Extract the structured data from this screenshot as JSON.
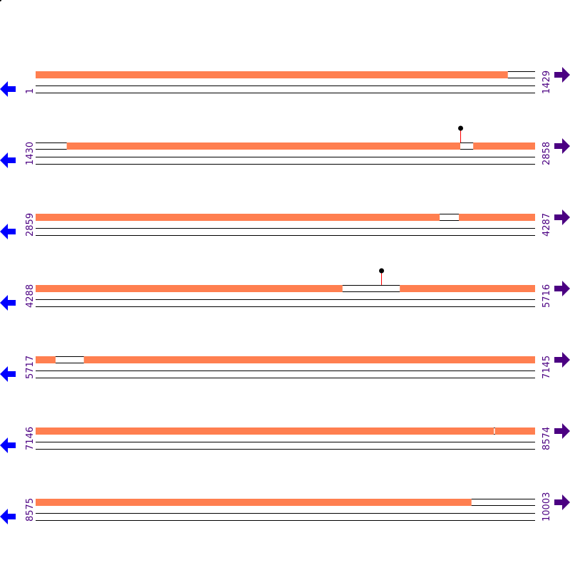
{
  "colors": {
    "covered": "#ff7f50",
    "gap_fill": "#ffffff",
    "line": "#000000",
    "marker_stem": "#ff0000",
    "marker_head": "#000000",
    "label": "#4b0082",
    "left_arrow": "#0000ff",
    "right_arrow": "#4b0082"
  },
  "icons": {
    "left": "arrow-left-icon",
    "right": "arrow-right-icon"
  },
  "rows": [
    {
      "start_label": "1",
      "end_label": "1429",
      "start": 1,
      "end": 1429
    },
    {
      "start_label": "1430",
      "end_label": "2858",
      "start": 1430,
      "end": 2858
    },
    {
      "start_label": "2859",
      "end_label": "4287",
      "start": 2859,
      "end": 4287
    },
    {
      "start_label": "4288",
      "end_label": "5716",
      "start": 4288,
      "end": 5716
    },
    {
      "start_label": "5717",
      "end_label": "7145",
      "start": 5717,
      "end": 7145
    },
    {
      "start_label": "7146",
      "end_label": "8574",
      "start": 7146,
      "end": 8574
    },
    {
      "start_label": "8575",
      "end_label": "10003",
      "start": 8575,
      "end": 10003
    }
  ],
  "gaps": [
    [
      1352,
      1429
    ],
    [
      1430,
      1518
    ],
    [
      2645,
      2681
    ],
    [
      4015,
      4069
    ],
    [
      5166,
      5329
    ],
    [
      5774,
      5854
    ],
    [
      8457,
      8459
    ],
    [
      9822,
      10003
    ]
  ],
  "markers": [
    2645,
    5276
  ]
}
